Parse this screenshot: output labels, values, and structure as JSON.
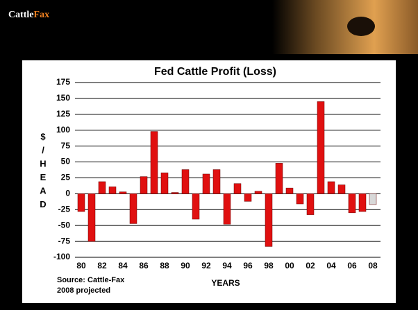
{
  "logo": [
    "Cattle",
    "Fax"
  ],
  "chart_data": {
    "type": "bar",
    "title": "Fed Cattle Profit (Loss)",
    "x_label": "YEARS",
    "y_label_lines": [
      "$",
      "/",
      "H",
      "E",
      "A",
      "D"
    ],
    "source": [
      "Source:  Cattle-Fax",
      "2008 projected"
    ],
    "categories": [
      "80",
      null,
      "82",
      null,
      "84",
      null,
      "86",
      null,
      "88",
      null,
      "90",
      null,
      "92",
      null,
      "94",
      null,
      "96",
      null,
      "98",
      null,
      "00",
      null,
      "02",
      null,
      "04",
      null,
      "06",
      null,
      "08"
    ],
    "values": [
      -28,
      -75,
      19,
      11,
      3,
      -47,
      27,
      98,
      33,
      2,
      38,
      -40,
      31,
      38,
      -48,
      16,
      -12,
      4,
      -83,
      48,
      9,
      -16,
      -33,
      145,
      19,
      14,
      -30,
      -28,
      -17
    ],
    "bar_colors": [
      "#e01010",
      "#e01010",
      "#e01010",
      "#e01010",
      "#e01010",
      "#e01010",
      "#e01010",
      "#e01010",
      "#e01010",
      "#e01010",
      "#e01010",
      "#e01010",
      "#e01010",
      "#e01010",
      "#e01010",
      "#e01010",
      "#e01010",
      "#e01010",
      "#e01010",
      "#e01010",
      "#e01010",
      "#e01010",
      "#e01010",
      "#e01010",
      "#e01010",
      "#e01010",
      "#e01010",
      "#e01010",
      "#d8d8d8"
    ],
    "ylim": [
      -100,
      175
    ],
    "yticks": [
      -100,
      -75,
      -50,
      -25,
      0,
      25,
      50,
      75,
      100,
      125,
      150,
      175
    ],
    "grid": true
  }
}
